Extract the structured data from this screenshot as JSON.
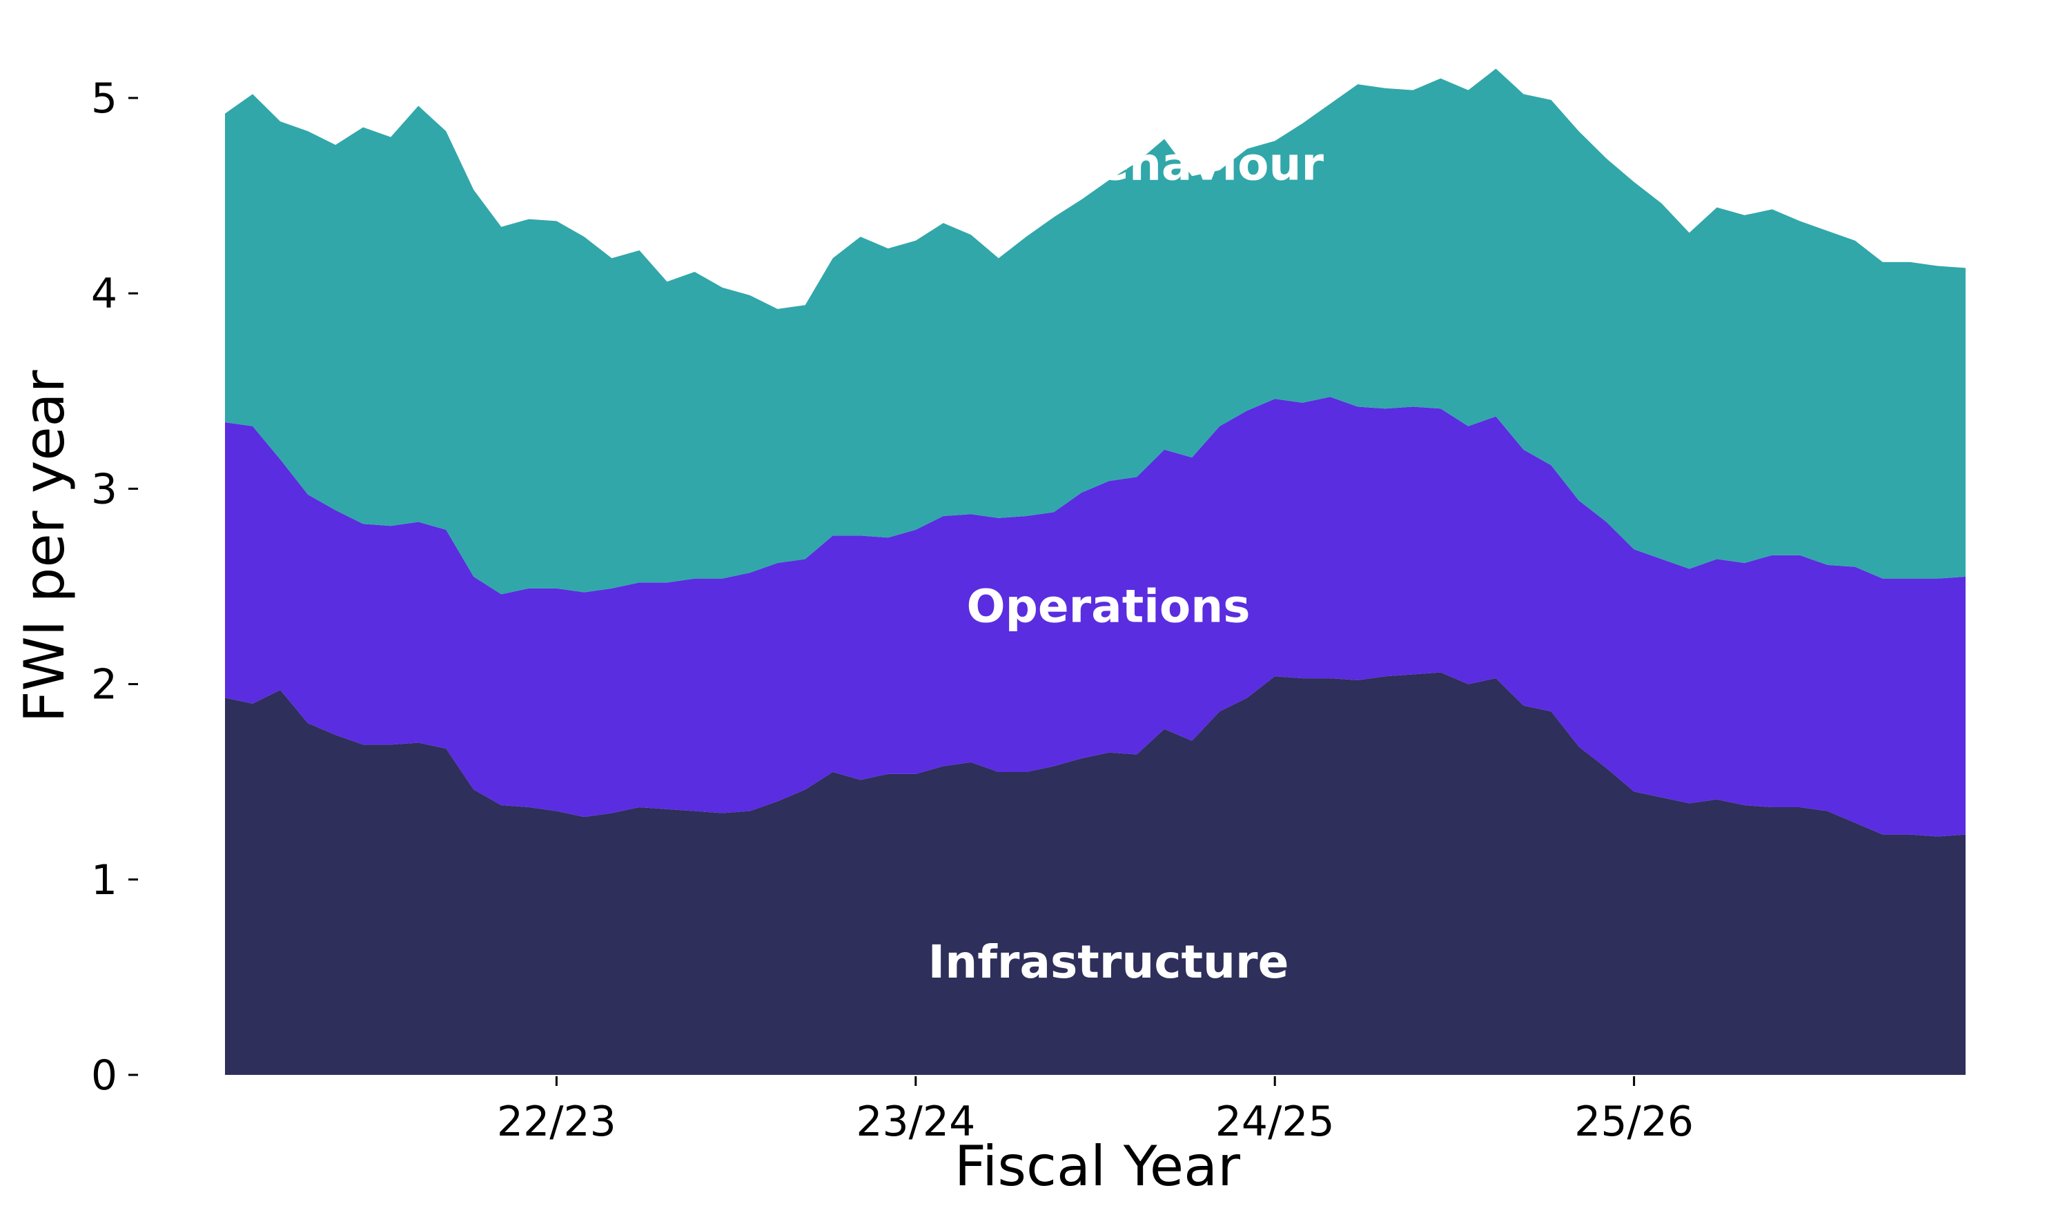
{
  "chart_data": {
    "type": "area",
    "stacked": true,
    "xlabel": "Fiscal Year",
    "ylabel": "FWI per year",
    "ylim": [
      0,
      5.3
    ],
    "yticks": [
      0,
      1,
      2,
      3,
      4,
      5
    ],
    "xticks": [
      {
        "label": "22/23",
        "period": 12
      },
      {
        "label": "23/24",
        "period": 25
      },
      {
        "label": "24/25",
        "period": 38
      },
      {
        "label": "25/26",
        "period": 51
      }
    ],
    "grid": false,
    "legend": "inline",
    "series": [
      {
        "name": "Infrastructure",
        "color": "#2e2f5a",
        "values": [
          1.93,
          1.9,
          1.97,
          1.8,
          1.74,
          1.69,
          1.69,
          1.7,
          1.67,
          1.46,
          1.38,
          1.37,
          1.35,
          1.32,
          1.34,
          1.37,
          1.36,
          1.35,
          1.34,
          1.35,
          1.4,
          1.46,
          1.55,
          1.51,
          1.54,
          1.54,
          1.58,
          1.6,
          1.55,
          1.55,
          1.58,
          1.62,
          1.65,
          1.64,
          1.77,
          1.71,
          1.86,
          1.93,
          2.04,
          2.03,
          2.03,
          2.02,
          2.04,
          2.05,
          2.06,
          2.0,
          2.03,
          1.89,
          1.86,
          1.68,
          1.57,
          1.45,
          1.42,
          1.39,
          1.41,
          1.38,
          1.37,
          1.37,
          1.35,
          1.29,
          1.23,
          1.23,
          1.22,
          1.23
        ]
      },
      {
        "name": "Operations",
        "color": "#5a2de0",
        "values": [
          1.41,
          1.42,
          1.18,
          1.17,
          1.15,
          1.13,
          1.12,
          1.13,
          1.12,
          1.09,
          1.08,
          1.12,
          1.14,
          1.15,
          1.15,
          1.15,
          1.16,
          1.19,
          1.2,
          1.22,
          1.22,
          1.18,
          1.21,
          1.25,
          1.21,
          1.25,
          1.28,
          1.27,
          1.3,
          1.31,
          1.3,
          1.36,
          1.39,
          1.42,
          1.43,
          1.45,
          1.46,
          1.47,
          1.42,
          1.41,
          1.44,
          1.4,
          1.37,
          1.37,
          1.35,
          1.32,
          1.34,
          1.31,
          1.26,
          1.26,
          1.26,
          1.24,
          1.22,
          1.2,
          1.23,
          1.24,
          1.29,
          1.29,
          1.26,
          1.31,
          1.31,
          1.31,
          1.32,
          1.32
        ]
      },
      {
        "name": "Public behaviour",
        "color": "#31a7aa",
        "values": [
          1.58,
          1.7,
          1.73,
          1.86,
          1.87,
          2.03,
          1.99,
          2.13,
          2.04,
          1.98,
          1.88,
          1.89,
          1.88,
          1.82,
          1.69,
          1.7,
          1.54,
          1.57,
          1.49,
          1.42,
          1.3,
          1.3,
          1.42,
          1.53,
          1.48,
          1.48,
          1.5,
          1.43,
          1.33,
          1.43,
          1.51,
          1.5,
          1.54,
          1.61,
          1.59,
          1.44,
          1.31,
          1.34,
          1.32,
          1.43,
          1.5,
          1.65,
          1.64,
          1.62,
          1.69,
          1.72,
          1.78,
          1.82,
          1.87,
          1.89,
          1.86,
          1.88,
          1.82,
          1.72,
          1.8,
          1.78,
          1.77,
          1.71,
          1.71,
          1.67,
          1.62,
          1.62,
          1.6,
          1.58
        ]
      }
    ]
  }
}
